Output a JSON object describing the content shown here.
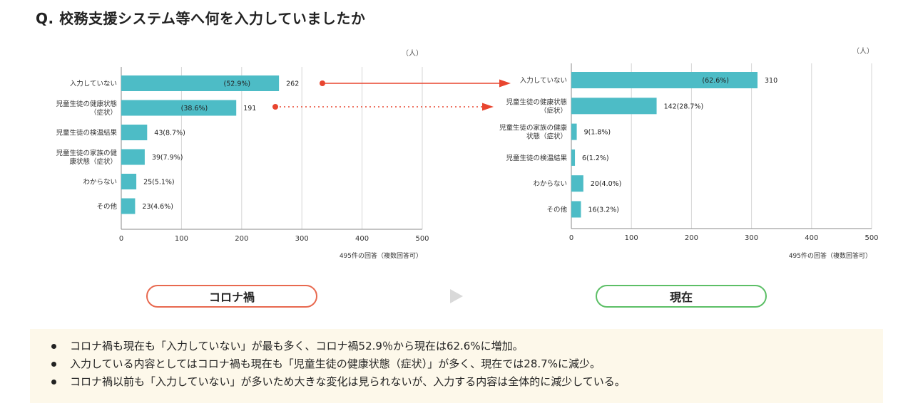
{
  "question": "Q. 校務支援システム等へ何を入力していましたか",
  "colors": {
    "bar": "#4dbcc6",
    "arrow": "#e8452f",
    "left_pill_border": "#e8694f",
    "right_pill_border": "#5cbf66",
    "summary_bg": "#fdf8ea"
  },
  "chart_data": [
    {
      "type": "bar",
      "orientation": "horizontal",
      "unit": "（人）",
      "categories": [
        "入力していない",
        "児童生徒の健康状態\n（症状）",
        "児童生徒の検温結果",
        "児童生徒の家族の健\n康状態（症状）",
        "わからない",
        "その他"
      ],
      "values": [
        262,
        191,
        43,
        39,
        25,
        23
      ],
      "percents": [
        "(52.9%)",
        "(38.6%)",
        "(8.7%)",
        "(7.9%)",
        "(5.1%)",
        "(4.6%)"
      ],
      "xlim": [
        0,
        500
      ],
      "xticks": [
        "0",
        "100",
        "200",
        "300",
        "400",
        "500"
      ],
      "note": "495件の回答（複数回答可）",
      "grid": true
    },
    {
      "type": "bar",
      "orientation": "horizontal",
      "unit": "（人）",
      "categories": [
        "入力していない",
        "児童生徒の健康状態\n（症状）",
        "児童生徒の家族の健康\n状態（症状）",
        "児童生徒の検温結果",
        "わからない",
        "その他"
      ],
      "values": [
        310,
        142,
        9,
        6,
        20,
        16
      ],
      "percents": [
        "(62.6%)",
        "(28.7%)",
        "(1.8%)",
        "(1.2%)",
        "(4.0%)",
        "(3.2%)"
      ],
      "xlim": [
        0,
        500
      ],
      "xticks": [
        "0",
        "100",
        "200",
        "300",
        "400",
        "500"
      ],
      "note": "495件の回答（複数回答可）",
      "grid": true
    }
  ],
  "period_labels": {
    "left": "コロナ禍",
    "right": "現在"
  },
  "summary": {
    "points": [
      "コロナ禍も現在も「入力していない」が最も多く、コロナ禍52.9％から現在は62.6%に増加。",
      "入力している内容としてはコロナ禍も現在も「児童生徒の健康状態（症状）」が多く、現在では28.7%に減少。",
      "コロナ禍以前も「入力していない」が多いため大きな変化は見られないが、入力する内容は全体的に減少している。"
    ]
  }
}
